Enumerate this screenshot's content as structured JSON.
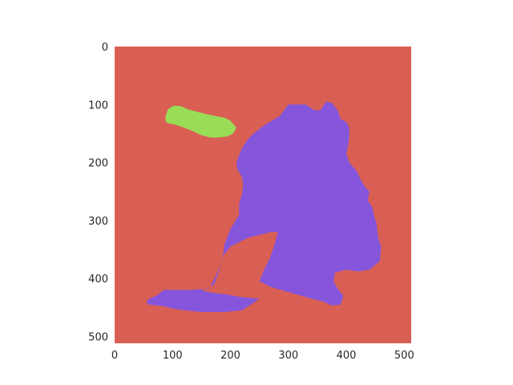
{
  "image": {
    "width_units": 512,
    "height_units": 512,
    "x_ticks": [
      0,
      100,
      200,
      300,
      400,
      500
    ],
    "y_ticks": [
      0,
      100,
      200,
      300,
      400,
      500
    ],
    "grid": false
  },
  "segments": [
    {
      "label_id": "background",
      "color": "#d95f55"
    },
    {
      "label_id": "body",
      "color": "#8556dc"
    },
    {
      "label_id": "head",
      "color": "#99dc55"
    }
  ],
  "tick_labels": {
    "x": [
      "0",
      "100",
      "200",
      "300",
      "400",
      "500"
    ],
    "y": [
      "0",
      "100",
      "200",
      "300",
      "400",
      "500"
    ]
  }
}
